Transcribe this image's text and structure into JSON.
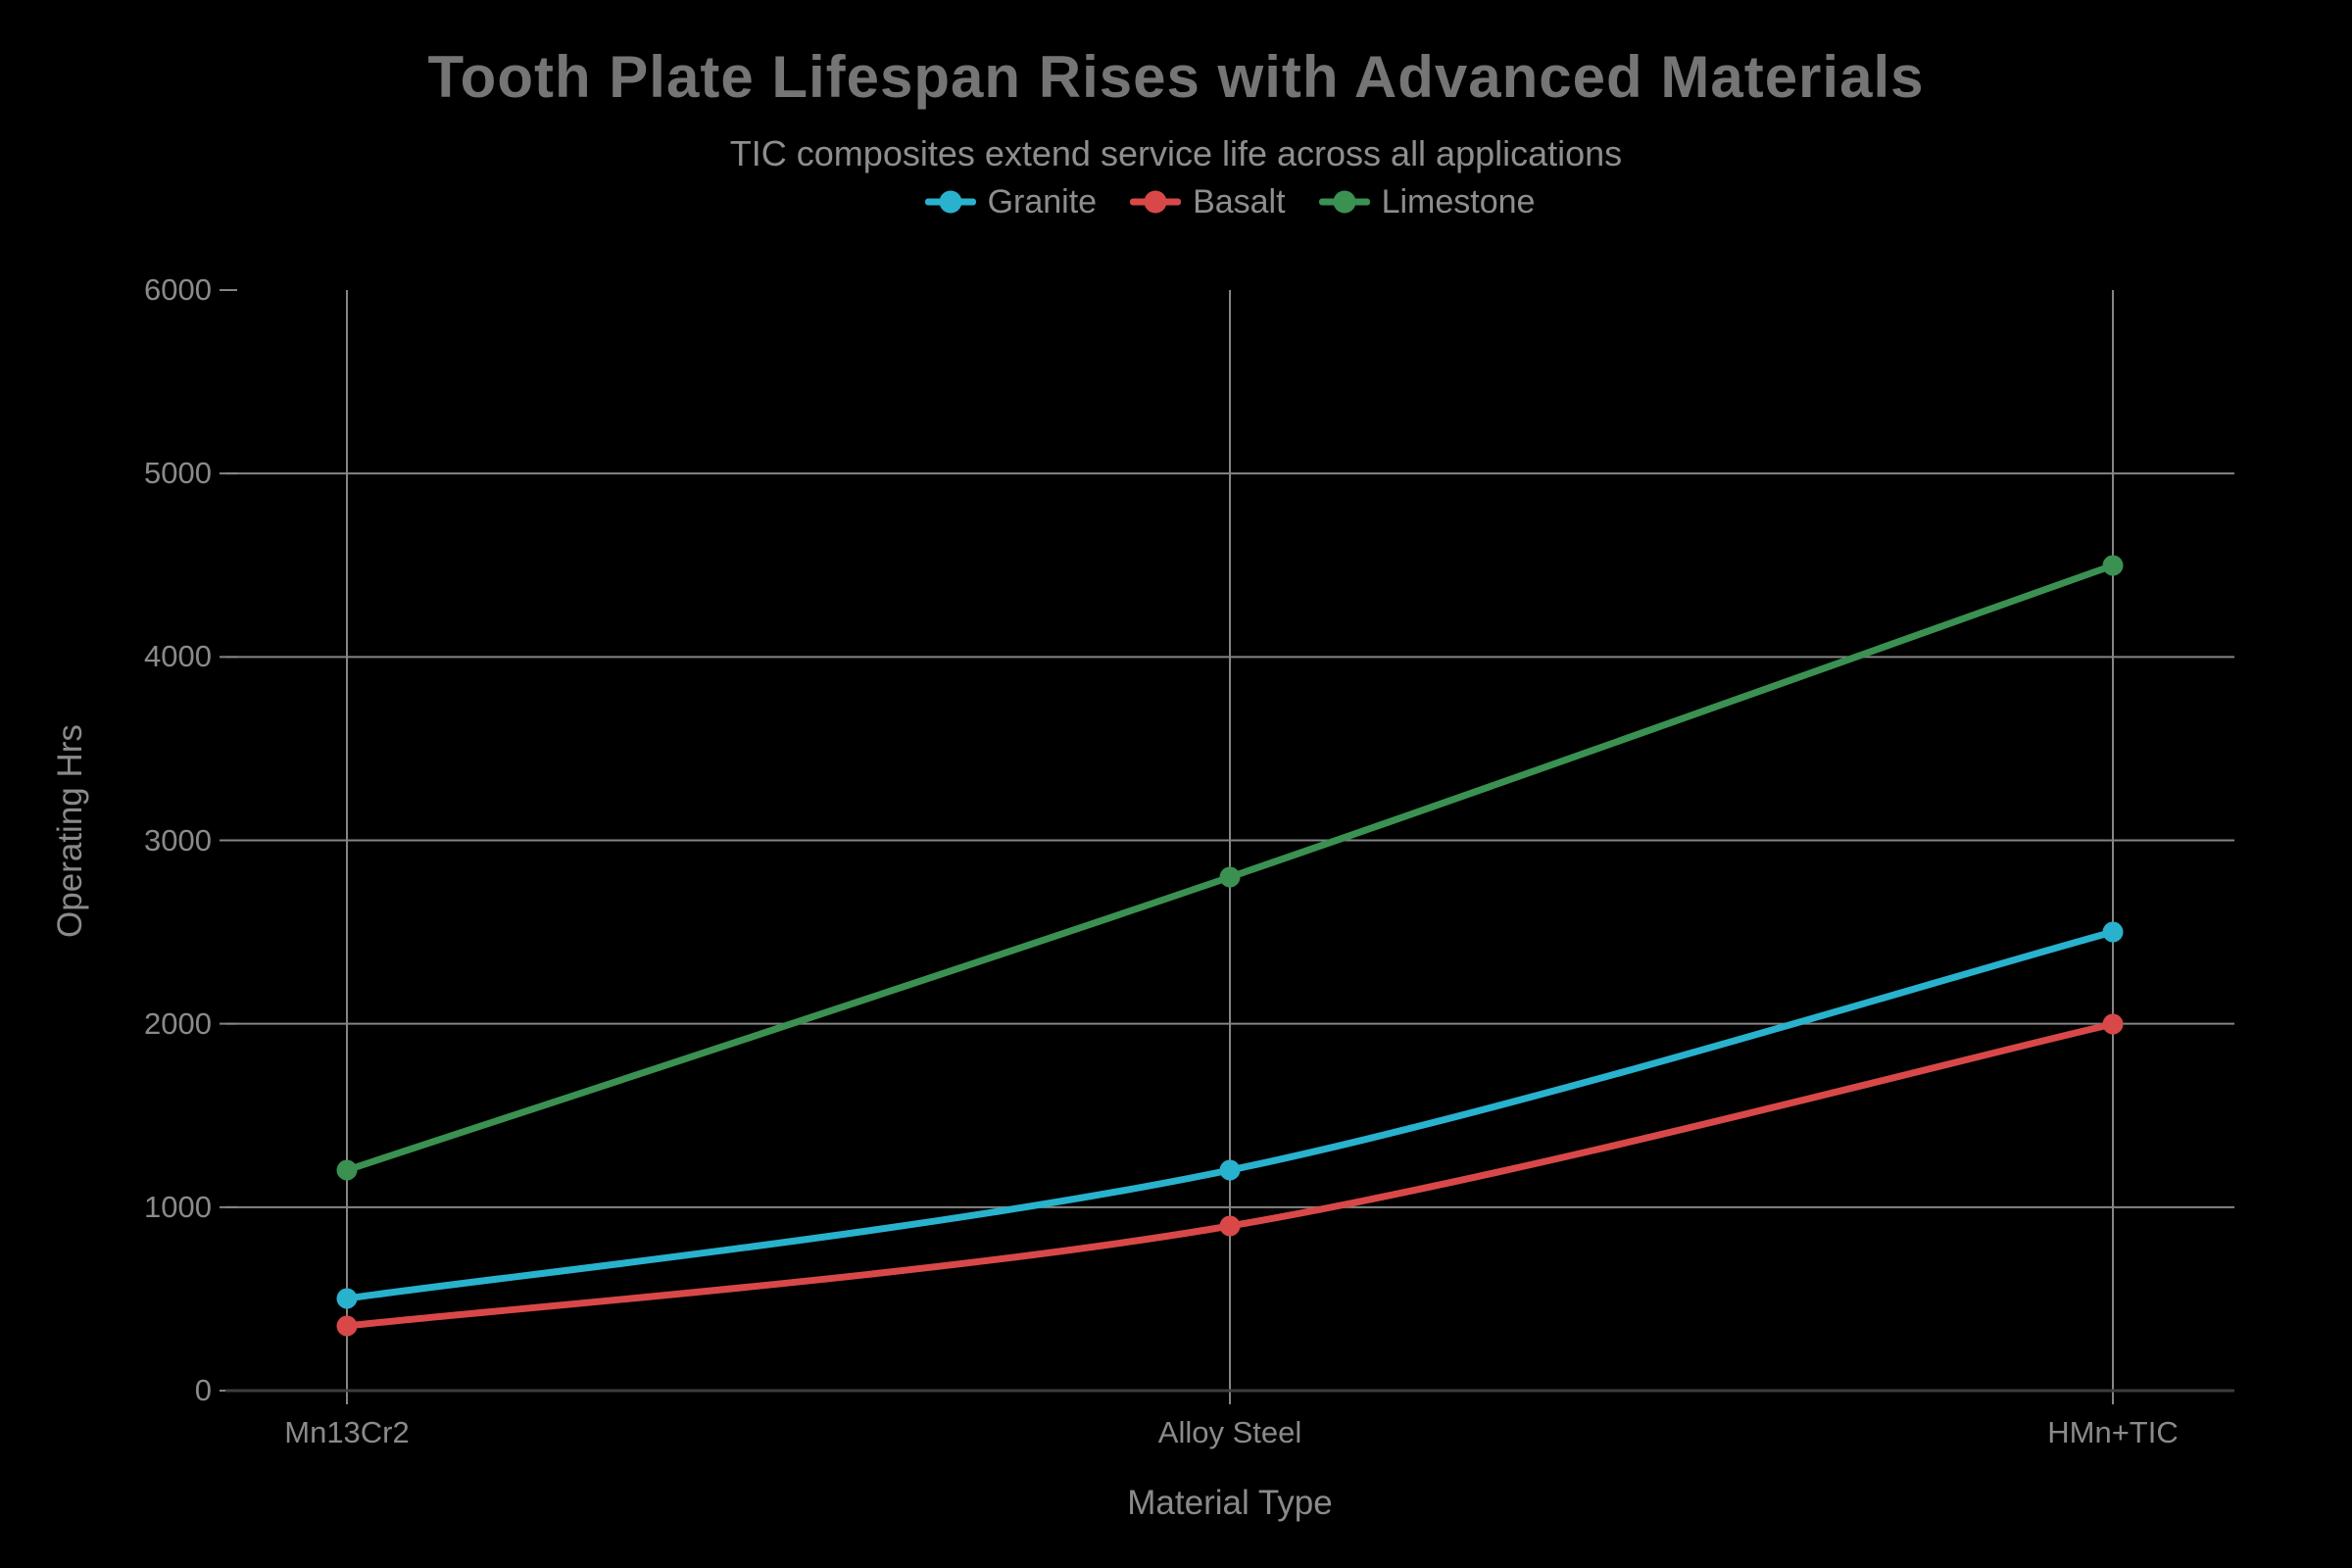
{
  "chart_data": {
    "type": "line",
    "title": "Tooth Plate Lifespan Rises with Advanced Materials",
    "subtitle": "TIC composites extend service life across all applications",
    "xlabel": "Material Type",
    "ylabel": "Operating Hrs",
    "categories": [
      "Mn13Cr2",
      "Alloy Steel",
      "HMn+TIC"
    ],
    "series": [
      {
        "name": "Granite",
        "color": "#28b2cd",
        "values": [
          500,
          1200,
          2500
        ]
      },
      {
        "name": "Basalt",
        "color": "#d94848",
        "values": [
          350,
          900,
          2000
        ]
      },
      {
        "name": "Limestone",
        "color": "#3a9152",
        "values": [
          1200,
          2800,
          4500
        ]
      }
    ],
    "ylim": [
      0,
      6000
    ],
    "ytick_step": 1000,
    "grid": true,
    "legend_position": "top-center"
  },
  "style": {
    "background": "#000000",
    "grid_color": "#858585",
    "axis_line_color": "#3d3d3d",
    "tick_color": "#858585",
    "title_color": "#757575",
    "subtitle_color": "#8e8e8e",
    "legend_text_color": "#8e8e8e",
    "tick_label_color": "#8a8a8a",
    "axis_title_color": "#8a8a8a"
  }
}
